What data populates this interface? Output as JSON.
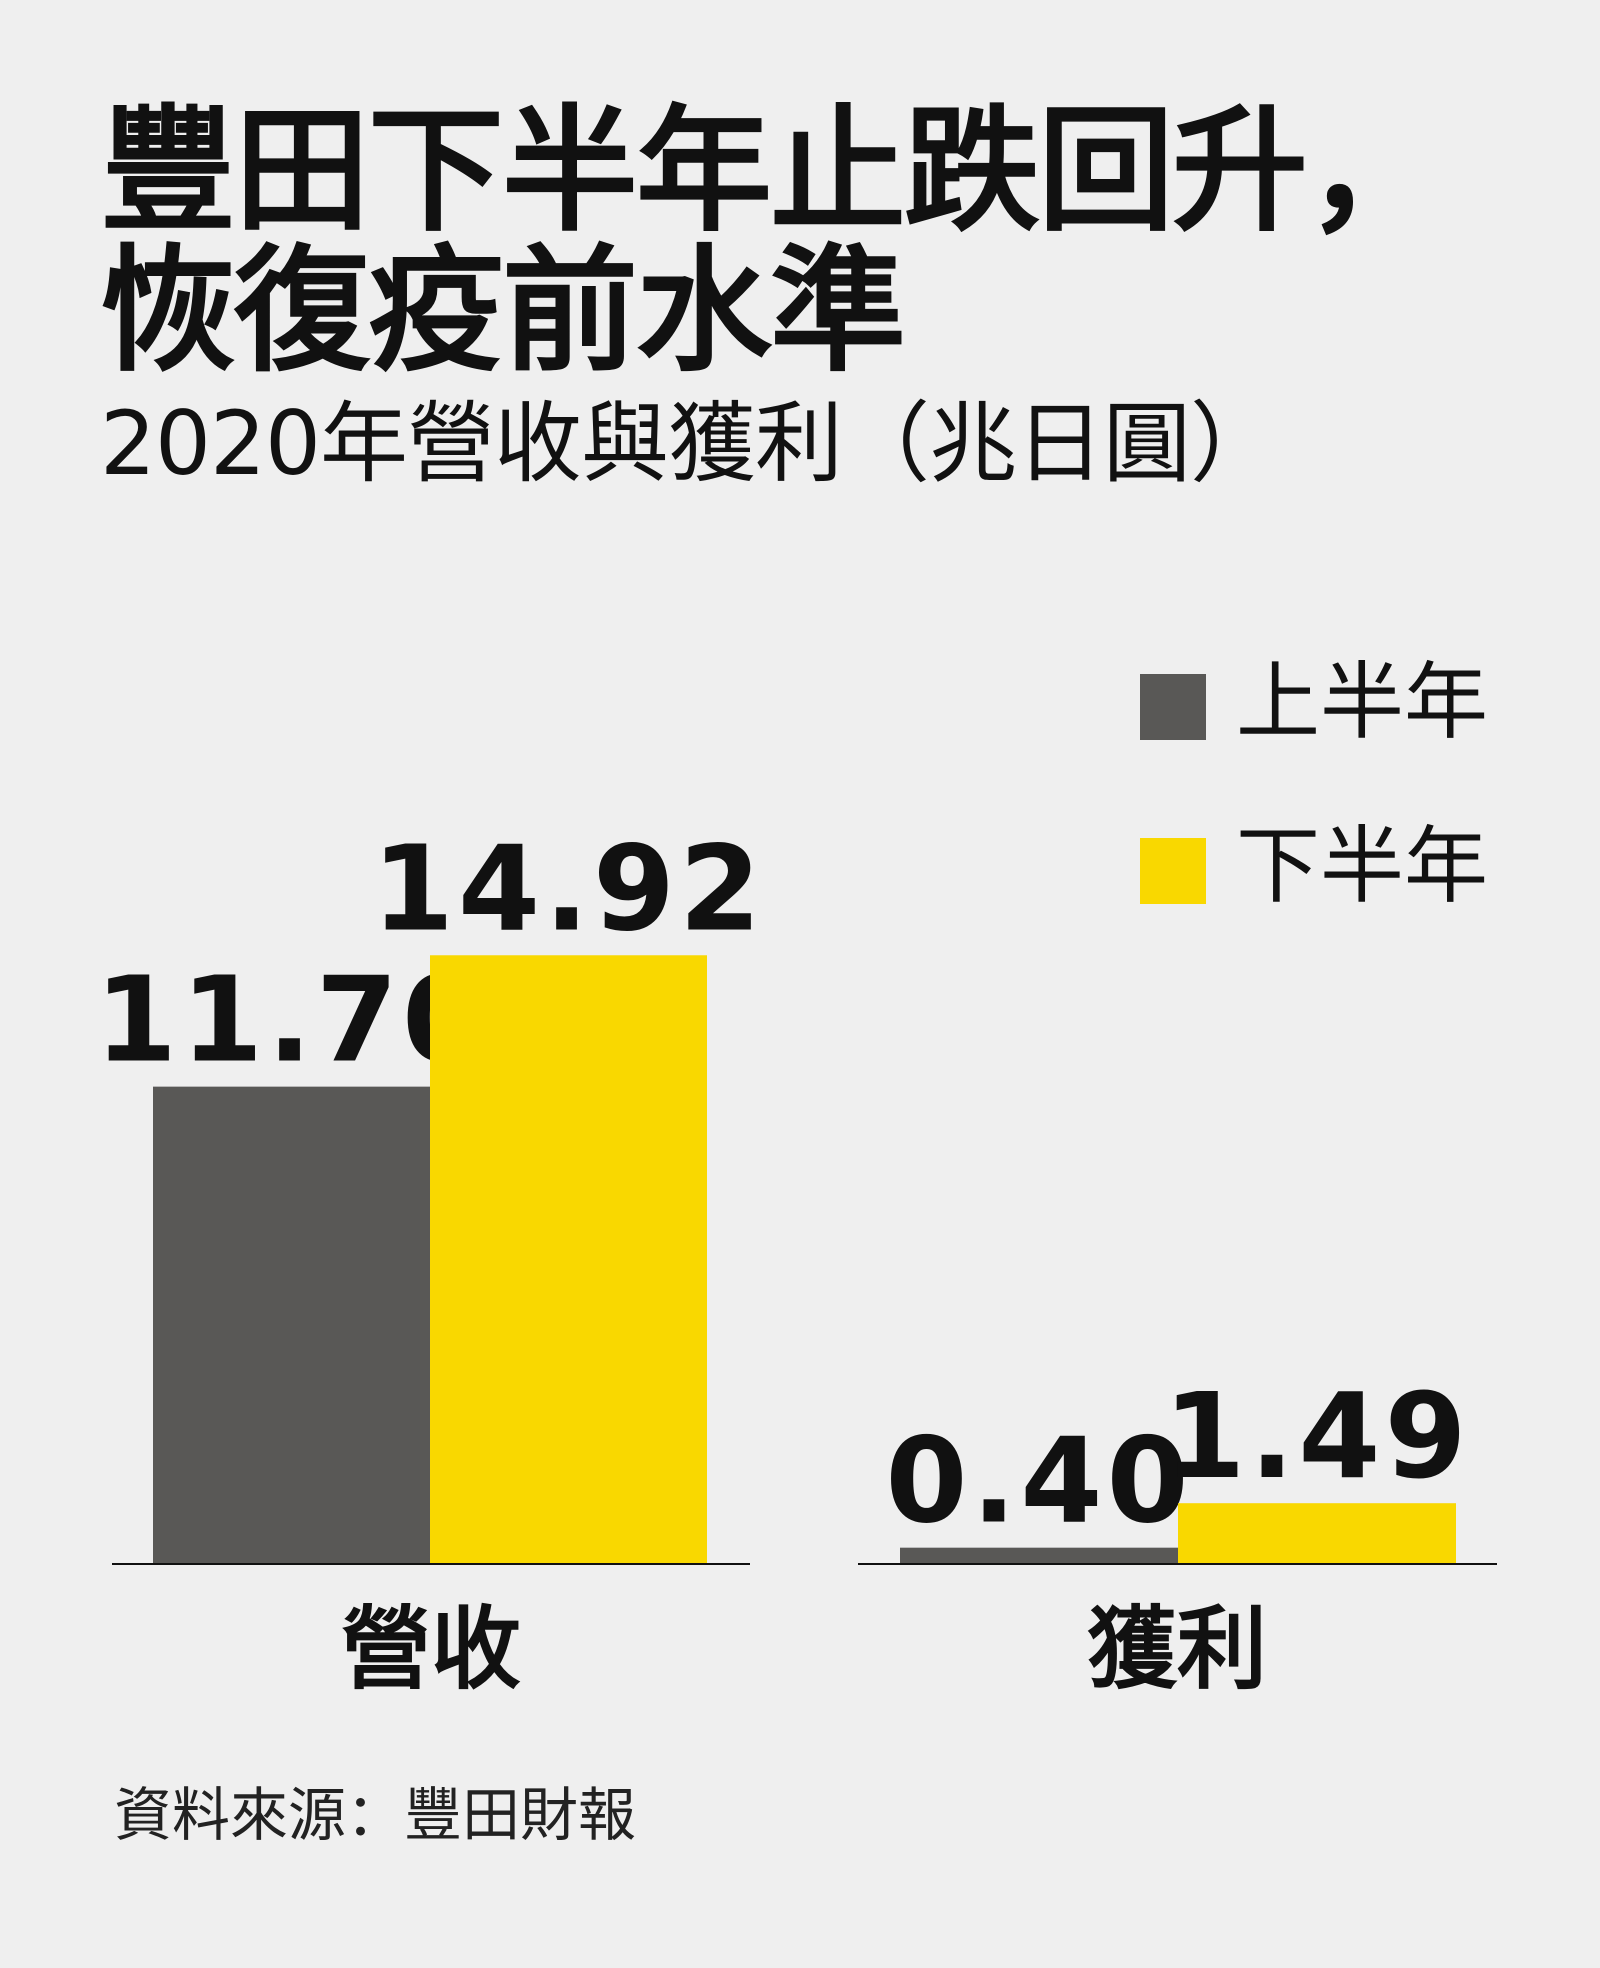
{
  "title_lines": [
    "豐田下半年止跌回升，",
    "恢復疫前水準"
  ],
  "subtitle": "2020年營收與獲利（兆日圓）",
  "source": "資料來源：豐田財報",
  "colors": {
    "first_half": "#595856",
    "second_half": "#f9d800",
    "background": "#efefef",
    "text": "#111111"
  },
  "chart_data": {
    "type": "bar",
    "title": "豐田下半年止跌回升，恢復疫前水準",
    "subtitle": "2020年營收與獲利（兆日圓）",
    "categories": [
      "營收",
      "獲利"
    ],
    "series": [
      {
        "name": "上半年",
        "values": [
          11.7,
          0.4
        ],
        "labels": [
          "11.70",
          "0.40"
        ]
      },
      {
        "name": "下半年",
        "values": [
          14.92,
          1.49
        ],
        "labels": [
          "14.92",
          "1.49"
        ]
      }
    ],
    "legend_position": "top-right",
    "grid": false,
    "axis_visible": false
  }
}
